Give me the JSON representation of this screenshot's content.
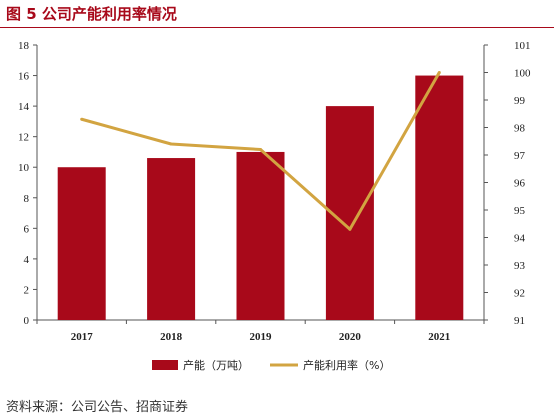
{
  "figure_title": "图 5 公司产能利用率情况",
  "source": "资料来源：公司公告、招商证券",
  "colors": {
    "bar": "#a8091a",
    "line": "#d2a441",
    "title": "#a8091a"
  },
  "chart_data": {
    "type": "bar",
    "categories": [
      "2017",
      "2018",
      "2019",
      "2020",
      "2021"
    ],
    "series": [
      {
        "name": "产能（万吨）",
        "type": "bar",
        "axis": "left",
        "values": [
          10,
          10.6,
          11,
          14,
          16
        ]
      },
      {
        "name": "产能利用率（%）",
        "type": "line",
        "axis": "right",
        "values": [
          98.3,
          97.4,
          97.2,
          94.3,
          100
        ]
      }
    ],
    "y_left": {
      "lim": [
        0,
        18
      ],
      "ticks": [
        "0",
        "2",
        "4",
        "6",
        "8",
        "10",
        "12",
        "14",
        "16",
        "18"
      ]
    },
    "y_right": {
      "lim": [
        91,
        101
      ],
      "ticks": [
        "91",
        "92",
        "93",
        "94",
        "95",
        "96",
        "97",
        "98",
        "99",
        "100",
        "101"
      ]
    },
    "grid": false,
    "legend_position": "bottom"
  }
}
